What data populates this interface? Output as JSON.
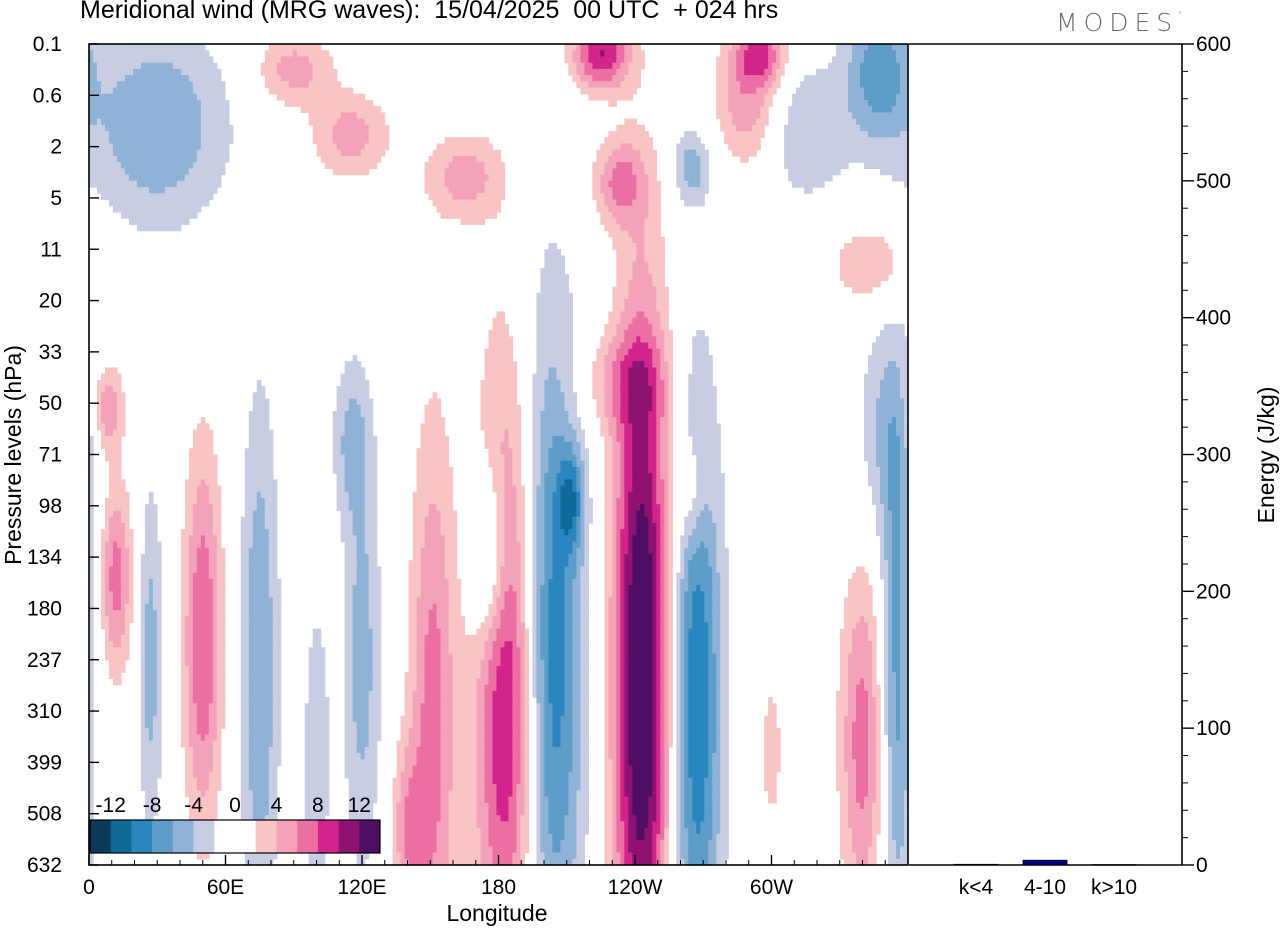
{
  "title": "Meridional wind (MRG waves):  15/04/2025  00 UTC  + 024 hrs",
  "brand": "MODES",
  "brand_mark": "°",
  "chart_data": [
    {
      "type": "heatmap",
      "xlabel": "Longitude",
      "ylabel": "Pressure levels (hPa)",
      "x_tick_labels": [
        "0",
        "60E",
        "120E",
        "180",
        "120W",
        "60W"
      ],
      "y_tick_labels": [
        "0.1",
        "0.6",
        "2",
        "5",
        "11",
        "20",
        "33",
        "50",
        "71",
        "98",
        "134",
        "180",
        "237",
        "310",
        "399",
        "508",
        "632"
      ],
      "colorbar": {
        "labels": [
          "-12",
          "-8",
          "-4",
          "0",
          "4",
          "8",
          "12"
        ],
        "colors": [
          "#0b3a5a",
          "#0f6a9a",
          "#2a86c0",
          "#5d9dc8",
          "#8fb3d6",
          "#c8cde3",
          "#ffffff",
          "#ffffff",
          "#f8c4c4",
          "#f4a2b9",
          "#ec6fa4",
          "#d2248a",
          "#8e1272",
          "#4f0e63"
        ]
      },
      "blobs": [
        {
          "lon": 187,
          "p_index": 12.4,
          "value": 15,
          "w_deg": 11,
          "h_lev": 4.2
        },
        {
          "lon": 200,
          "p_index": 12.0,
          "value": -14,
          "w_deg": 11,
          "h_lev": 4.5
        },
        {
          "lon": 243,
          "p_index": 12.3,
          "value": 15,
          "w_deg": 9,
          "h_lev": 5.0
        },
        {
          "lon": 267,
          "p_index": 12.8,
          "value": -10,
          "w_deg": 8,
          "h_lev": 4.2
        },
        {
          "lon": 340,
          "p_index": 13.6,
          "value": 7,
          "w_deg": 7,
          "h_lev": 2.4
        },
        {
          "lon": 355,
          "p_index": 12.4,
          "value": -7,
          "w_deg": 5,
          "h_lev": 3.6
        },
        {
          "lon": 176,
          "p_index": 10.0,
          "value": -7,
          "w_deg": 6,
          "h_lev": 1.3
        },
        {
          "lon": 151,
          "p_index": 13.2,
          "value": 7,
          "w_deg": 7,
          "h_lev": 4.0
        },
        {
          "lon": 120,
          "p_index": 12.0,
          "value": -5,
          "w_deg": 6,
          "h_lev": 3.0
        },
        {
          "lon": 75,
          "p_index": 12.2,
          "value": -6,
          "w_deg": 6,
          "h_lev": 3.8
        },
        {
          "lon": 50,
          "p_index": 11.6,
          "value": 8,
          "w_deg": 6,
          "h_lev": 2.6
        },
        {
          "lon": 12,
          "p_index": 10.4,
          "value": 7,
          "w_deg": 5,
          "h_lev": 1.3
        },
        {
          "lon": 27,
          "p_index": 12.0,
          "value": -5,
          "w_deg": 4,
          "h_lev": 2.4
        },
        {
          "lon": 212,
          "p_index": 8.9,
          "value": -6,
          "w_deg": 4,
          "h_lev": 0.7
        },
        {
          "lon": 8,
          "p_index": 7.1,
          "value": 6,
          "w_deg": 5,
          "h_lev": 0.6
        },
        {
          "lon": 225,
          "p_index": 0.2,
          "value": 10,
          "w_deg": 9,
          "h_lev": 0.5
        },
        {
          "lon": 347,
          "p_index": 0.5,
          "value": -7,
          "w_deg": 10,
          "h_lev": 1.0
        },
        {
          "lon": 30,
          "p_index": 1.6,
          "value": -6,
          "w_deg": 22,
          "h_lev": 1.4
        },
        {
          "lon": 290,
          "p_index": 1.1,
          "value": 6,
          "w_deg": 10,
          "h_lev": 0.9
        },
        {
          "lon": 295,
          "p_index": 0.2,
          "value": 7,
          "w_deg": 8,
          "h_lev": 0.4
        },
        {
          "lon": 233,
          "p_index": 2.7,
          "value": 6,
          "w_deg": 8,
          "h_lev": 0.6
        },
        {
          "lon": 115,
          "p_index": 1.8,
          "value": 5,
          "w_deg": 12,
          "h_lev": 0.6
        },
        {
          "lon": 265,
          "p_index": 2.4,
          "value": -5,
          "w_deg": 6,
          "h_lev": 0.5
        },
        {
          "lon": 165,
          "p_index": 2.6,
          "value": 5,
          "w_deg": 12,
          "h_lev": 0.6
        },
        {
          "lon": 90,
          "p_index": 0.5,
          "value": 5,
          "w_deg": 12,
          "h_lev": 0.5
        },
        {
          "lon": 345,
          "p_index": 4.3,
          "value": 4,
          "w_deg": 14,
          "h_lev": 0.6
        },
        {
          "lon": 315,
          "p_index": 1.7,
          "value": -4,
          "w_deg": 14,
          "h_lev": 1.0
        },
        {
          "lon": 350,
          "p_index": 7.5,
          "value": -4,
          "w_deg": 9,
          "h_lev": 1.6
        },
        {
          "lon": 140,
          "p_index": 15.3,
          "value": 5,
          "w_deg": 5,
          "h_lev": 1.2
        },
        {
          "lon": 300,
          "p_index": 13.8,
          "value": 3.5,
          "w_deg": 3,
          "h_lev": 1.0
        },
        {
          "lon": 100,
          "p_index": 14.0,
          "value": -4,
          "w_deg": 4,
          "h_lev": 2.2
        },
        {
          "lon": 235,
          "p_index": 6.6,
          "value": 4,
          "w_deg": 14,
          "h_lev": 0.7
        },
        {
          "lon": 115,
          "p_index": 7.7,
          "value": -4,
          "w_deg": 6,
          "h_lev": 1.1
        },
        {
          "lon": 265,
          "p_index": 8.7,
          "value": 4,
          "w_deg": 5,
          "h_lev": 0.8
        }
      ]
    },
    {
      "type": "bar",
      "ylabel": "Energy (J/kg)",
      "ylim": [
        0,
        600
      ],
      "y_tick_labels": [
        "0",
        "100",
        "200",
        "300",
        "400",
        "500",
        "600"
      ],
      "categories": [
        "k<4",
        "4-10",
        "k>10"
      ],
      "values": [
        0.5,
        3.5,
        0.3
      ],
      "bar_color": "#000080"
    }
  ]
}
